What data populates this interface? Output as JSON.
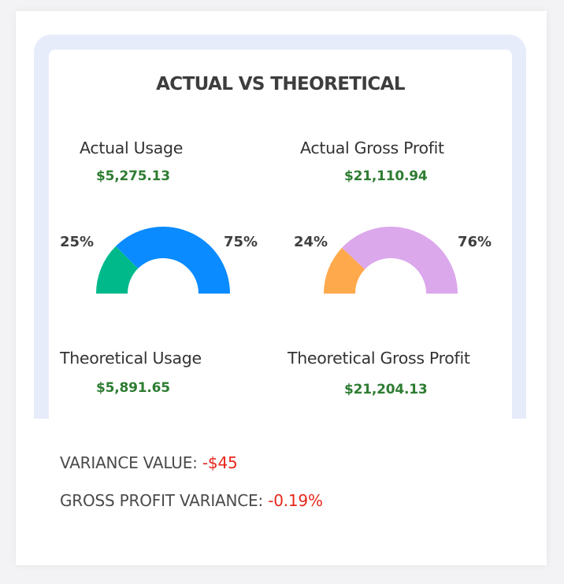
{
  "title": "ACTUAL VS THEORETICAL",
  "usage": {
    "actual_label": "Actual Usage",
    "actual_value": "$5,275.13",
    "theoretical_label": "Theoretical Usage",
    "theoretical_value": "$5,891.65",
    "left_pct_label": "25%",
    "right_pct_label": "75%",
    "left_fraction": 0.25,
    "left_color": "#00b98b",
    "right_color": "#0a8bff"
  },
  "gross_profit": {
    "actual_label": "Actual Gross Profit",
    "actual_value": "$21,110.94",
    "theoretical_label": "Theoretical Gross Profit",
    "theoretical_value": "$21,204.13",
    "left_pct_label": "24%",
    "right_pct_label": "76%",
    "left_fraction": 0.24,
    "left_color": "#ffa94d",
    "right_color": "#dca8ec"
  },
  "summary": {
    "variance_label": "VARIANCE VALUE:",
    "variance_value": "-$45",
    "gp_variance_label": "GROSS PROFIT VARIANCE:",
    "gp_variance_value": "-0.19%"
  },
  "colors": {
    "value_green": "#2e7d32",
    "negative_red": "#e8261c",
    "frame_tint": "#e7ecfb"
  }
}
